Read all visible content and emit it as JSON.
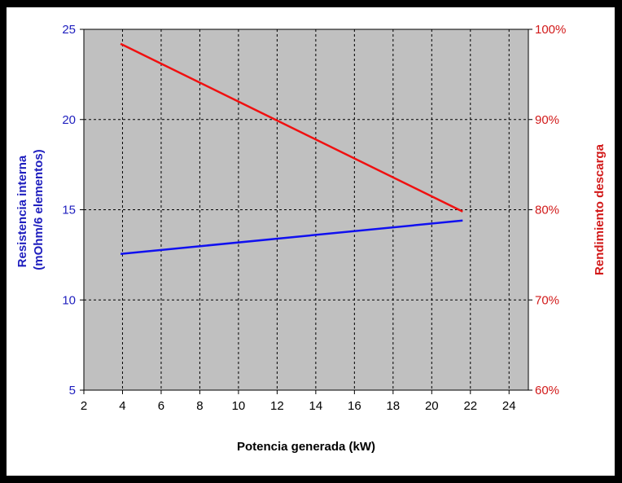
{
  "chart_data": {
    "type": "line",
    "title": "",
    "xlabel": "Potencia generada (kW)",
    "ylabel_left_lines": [
      "Resistencia interna",
      "(mOhm/6 elementos)"
    ],
    "ylabel_right": "Rendimiento descarga",
    "xlim": [
      2,
      25
    ],
    "xticks": [
      2,
      4,
      6,
      8,
      10,
      12,
      14,
      16,
      18,
      20,
      22,
      24
    ],
    "ylim_left": [
      5,
      25
    ],
    "yticks_left": [
      5,
      10,
      15,
      20,
      25
    ],
    "ylim_right": [
      0.6,
      1.0
    ],
    "yticks_right": [
      "60%",
      "70%",
      "80%",
      "90%",
      "100%"
    ],
    "yticks_right_values": [
      0.6,
      0.7,
      0.8,
      0.9,
      1.0
    ],
    "grid": true,
    "plot_bg": "#c0c0c0",
    "left_axis_color": "#1e1ebe",
    "right_axis_color": "#d21919",
    "series": [
      {
        "axis": "left",
        "color": "#1010f0",
        "x": [
          3.9,
          21.6
        ],
        "y": [
          12.55,
          14.4
        ]
      },
      {
        "axis": "right",
        "color": "#f01010",
        "x": [
          3.9,
          21.6
        ],
        "y": [
          0.984,
          0.798
        ]
      }
    ]
  }
}
